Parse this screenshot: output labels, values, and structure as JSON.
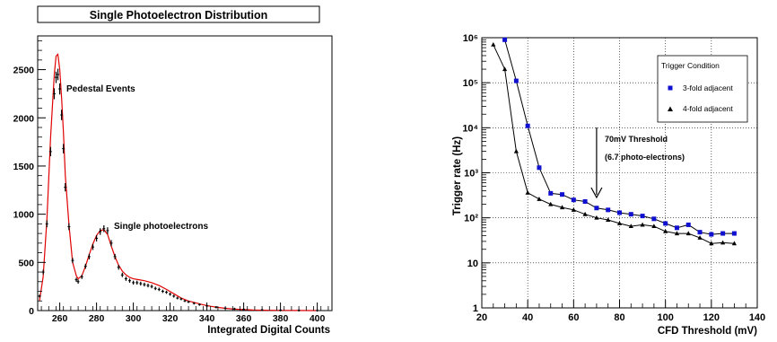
{
  "chart_data": [
    {
      "type": "line",
      "title": "Single Photoelectron Distribution",
      "xlabel": "Integrated Digital Counts",
      "ylabel": "",
      "xlim": [
        248,
        408
      ],
      "ylim": [
        0,
        2850
      ],
      "x_ticks": [
        260,
        280,
        300,
        320,
        340,
        360,
        380,
        400
      ],
      "y_ticks": [
        0,
        500,
        1000,
        1500,
        2000,
        2500
      ],
      "annotations": [
        "Pedestal Events",
        "Single photoelectrons"
      ],
      "series": [
        {
          "kind": "fit",
          "color": "#e00000",
          "x": [
            249,
            251,
            253,
            255,
            257,
            258,
            259,
            260,
            261,
            262,
            263,
            265,
            267,
            269,
            270,
            272,
            274,
            276,
            278,
            280,
            282,
            284,
            286,
            288,
            290,
            292,
            294,
            296,
            298,
            300,
            303,
            306,
            310,
            314,
            318,
            322,
            326,
            330,
            334,
            338,
            342,
            346,
            350,
            355,
            360,
            365,
            370,
            380,
            390,
            400
          ],
          "y": [
            100,
            350,
            950,
            1800,
            2450,
            2640,
            2660,
            2500,
            2200,
            1850,
            1400,
            900,
            500,
            360,
            330,
            360,
            460,
            580,
            690,
            780,
            830,
            840,
            790,
            670,
            560,
            470,
            410,
            370,
            345,
            330,
            320,
            310,
            290,
            260,
            220,
            175,
            130,
            100,
            80,
            60,
            45,
            33,
            23,
            15,
            10,
            6,
            4,
            2,
            1,
            0
          ]
        },
        {
          "kind": "data",
          "color": "#000000",
          "x": [
            249,
            251,
            253,
            255,
            257,
            258,
            259,
            260,
            261,
            262,
            263,
            265,
            267,
            269,
            270,
            272,
            274,
            276,
            278,
            280,
            282,
            284,
            286,
            288,
            290,
            292,
            294,
            296,
            298,
            300,
            302,
            304,
            306,
            308,
            310,
            312,
            314,
            316,
            318,
            320,
            322,
            324,
            326,
            328,
            330,
            333,
            336,
            340,
            345,
            350,
            355,
            360,
            370,
            380,
            390,
            400
          ],
          "y": [
            150,
            400,
            900,
            1650,
            2250,
            2420,
            2450,
            2300,
            2030,
            1680,
            1280,
            870,
            520,
            320,
            300,
            350,
            460,
            560,
            660,
            750,
            820,
            850,
            830,
            700,
            560,
            450,
            370,
            330,
            310,
            290,
            290,
            280,
            270,
            260,
            250,
            230,
            220,
            200,
            190,
            170,
            150,
            130,
            120,
            100,
            90,
            75,
            62,
            48,
            35,
            25,
            18,
            12,
            7,
            4,
            2,
            1
          ]
        }
      ]
    },
    {
      "type": "line",
      "title": "",
      "xlabel": "CFD Threshold (mV)",
      "ylabel": "Trigger rate (Hz)",
      "xlim": [
        20,
        140
      ],
      "ylim": [
        1,
        1000000
      ],
      "yscale": "log",
      "grid": true,
      "x_ticks": [
        20,
        40,
        60,
        80,
        100,
        120,
        140
      ],
      "y_ticks": [
        "1",
        "10",
        "10²",
        "10³",
        "10⁴",
        "10⁵",
        "10⁶"
      ],
      "legend": {
        "title": "Trigger Condition",
        "placement": "top-right"
      },
      "annotations": [
        "70mV Threshold",
        "(6.7 photo-electrons)"
      ],
      "arrow_at_x": 70,
      "series": [
        {
          "name": "3-fold adjacent",
          "marker": "square",
          "color": "#1010d0",
          "x": [
            30,
            35,
            40,
            45,
            50,
            55,
            60,
            65,
            70,
            75,
            80,
            85,
            90,
            95,
            100,
            105,
            110,
            115,
            120,
            125,
            130
          ],
          "y": [
            900000,
            110000,
            11000,
            1300,
            350,
            330,
            250,
            230,
            165,
            150,
            130,
            120,
            110,
            95,
            75,
            60,
            70,
            48,
            43,
            45,
            45
          ]
        },
        {
          "name": "4-fold adjacent",
          "marker": "triangle",
          "color": "#000000",
          "x": [
            25,
            30,
            35,
            40,
            45,
            50,
            55,
            60,
            65,
            70,
            75,
            80,
            85,
            90,
            95,
            100,
            105,
            110,
            115,
            120,
            125,
            130
          ],
          "y": [
            700000,
            200000,
            3000,
            360,
            260,
            200,
            170,
            150,
            120,
            100,
            90,
            75,
            65,
            70,
            65,
            50,
            45,
            45,
            36,
            27,
            28,
            27
          ]
        }
      ]
    }
  ]
}
